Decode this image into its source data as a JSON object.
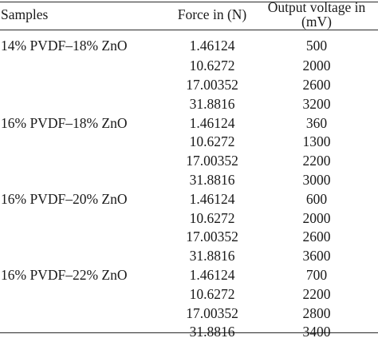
{
  "table": {
    "headers": {
      "samples": "Samples",
      "force": "Force in (N)",
      "voltage": "Output voltage in (mV)"
    },
    "groups": [
      {
        "sample": "14% PVDF–18% ZnO",
        "rows": [
          {
            "force": "1.46124",
            "voltage": "500"
          },
          {
            "force": "10.6272",
            "voltage": "2000"
          },
          {
            "force": "17.00352",
            "voltage": "2600"
          },
          {
            "force": "31.8816",
            "voltage": "3200"
          }
        ]
      },
      {
        "sample": "16% PVDF–18% ZnO",
        "rows": [
          {
            "force": "1.46124",
            "voltage": "360"
          },
          {
            "force": "10.6272",
            "voltage": "1300"
          },
          {
            "force": "17.00352",
            "voltage": "2200"
          },
          {
            "force": "31.8816",
            "voltage": "3000"
          }
        ]
      },
      {
        "sample": "16% PVDF–20% ZnO",
        "rows": [
          {
            "force": "1.46124",
            "voltage": "600"
          },
          {
            "force": "10.6272",
            "voltage": "2000"
          },
          {
            "force": "17.00352",
            "voltage": "2600"
          },
          {
            "force": "31.8816",
            "voltage": "3600"
          }
        ]
      },
      {
        "sample": "16% PVDF–22% ZnO",
        "rows": [
          {
            "force": "1.46124",
            "voltage": "700"
          },
          {
            "force": "10.6272",
            "voltage": "2200"
          },
          {
            "force": "17.00352",
            "voltage": "2800"
          },
          {
            "force": "31.8816",
            "voltage": "3400"
          }
        ]
      }
    ]
  }
}
